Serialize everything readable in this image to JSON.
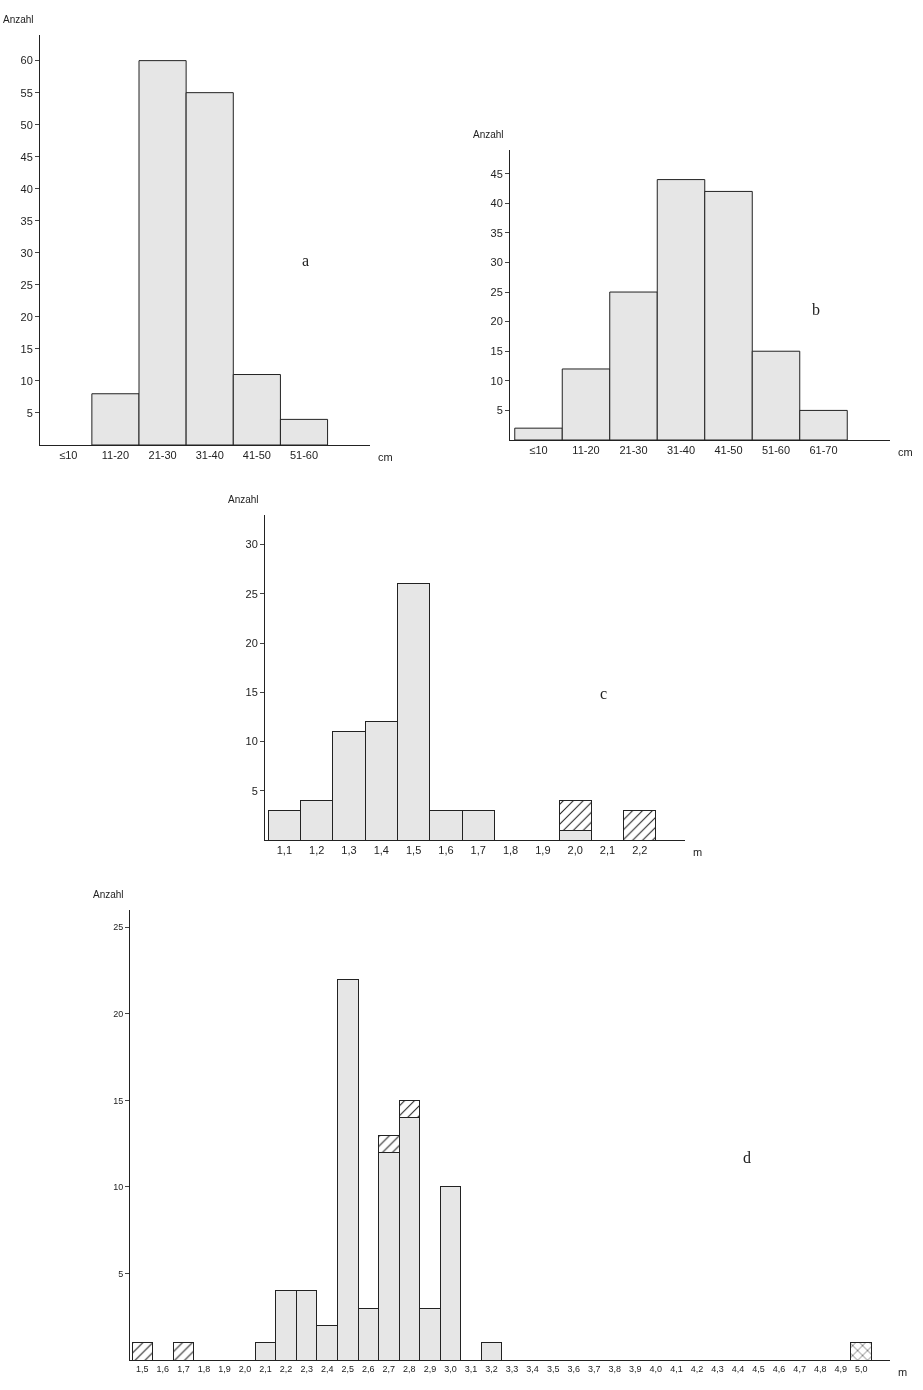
{
  "chart_data": [
    {
      "type": "bar",
      "ylabel": "Anzahl",
      "xlabel": "cm",
      "annotations": [
        "a"
      ],
      "categories": [
        "≤10",
        "11-20",
        "21-30",
        "31-40",
        "41-50",
        "51-60"
      ],
      "series": [
        {
          "color": "#e6e6e6",
          "values": [
            0,
            8,
            60,
            55,
            11,
            4
          ]
        }
      ],
      "ylim": [
        0,
        64
      ],
      "yticks": [
        5,
        10,
        15,
        20,
        25,
        30,
        35,
        40,
        45,
        50,
        55,
        60
      ]
    },
    {
      "type": "bar",
      "ylabel": "Anzahl",
      "xlabel": "cm",
      "annotations": [
        "b"
      ],
      "categories": [
        "≤10",
        "11-20",
        "21-30",
        "31-40",
        "41-50",
        "51-60",
        "61-70"
      ],
      "series": [
        {
          "color": "#e6e6e6",
          "values": [
            2,
            12,
            25,
            44,
            42,
            15,
            5
          ]
        }
      ],
      "ylim": [
        0,
        49
      ],
      "yticks": [
        5,
        10,
        15,
        20,
        25,
        30,
        35,
        40,
        45
      ]
    },
    {
      "type": "bar",
      "stacked": true,
      "ylabel": "Anzahl",
      "xlabel": "m",
      "annotations": [
        "c"
      ],
      "categories": [
        "1,1",
        "1,2",
        "1,3",
        "1,4",
        "1,5",
        "1,6",
        "1,7",
        "1,8",
        "1,9",
        "2,0",
        "2,1",
        "2,2"
      ],
      "series": [
        {
          "color": "#e6e6e6",
          "values": [
            3,
            4,
            11,
            12,
            26,
            3,
            3,
            0,
            0,
            1,
            0,
            0
          ]
        },
        {
          "color": "#222222",
          "values": [
            0,
            0,
            0,
            0,
            0,
            0,
            0,
            0,
            0,
            3,
            0,
            3
          ]
        }
      ],
      "ylim": [
        0,
        33
      ],
      "yticks": [
        5,
        10,
        15,
        20,
        25,
        30
      ]
    },
    {
      "type": "bar",
      "stacked": true,
      "ylabel": "Anzahl",
      "xlabel": "m",
      "annotations": [
        "d"
      ],
      "categories": [
        "1,5",
        "1,6",
        "1,7",
        "1,8",
        "1,9",
        "2,0",
        "2,1",
        "2,2",
        "2,3",
        "2,4",
        "2,5",
        "2,6",
        "2,7",
        "2,8",
        "2,9",
        "3,0",
        "3,1",
        "3,2",
        "3,3",
        "3,4",
        "3,5",
        "3,6",
        "3,7",
        "3,8",
        "3,9",
        "4,0",
        "4,1",
        "4,2",
        "4,3",
        "4,4",
        "4,5",
        "4,6",
        "4,7",
        "4,8",
        "4,9",
        "5,0"
      ],
      "series": [
        {
          "color": "#e6e6e6",
          "values": [
            0,
            0,
            0,
            0,
            0,
            0,
            1,
            4,
            4,
            2,
            22,
            3,
            12,
            14,
            3,
            10,
            0,
            1,
            0,
            0,
            0,
            0,
            0,
            0,
            0,
            0,
            0,
            0,
            0,
            0,
            0,
            0,
            0,
            0,
            0,
            0
          ]
        },
        {
          "color": "#222222",
          "values": [
            1,
            0,
            1,
            0,
            0,
            0,
            0,
            0,
            0,
            0,
            0,
            0,
            1,
            1,
            0,
            0,
            0,
            0,
            0,
            0,
            0,
            0,
            0,
            0,
            0,
            0,
            0,
            0,
            0,
            0,
            0,
            0,
            0,
            0,
            0,
            0
          ]
        },
        {
          "color": "#222222",
          "values": [
            0,
            0,
            0,
            0,
            0,
            0,
            0,
            0,
            0,
            0,
            0,
            0,
            0,
            0,
            0,
            0,
            0,
            0,
            0,
            0,
            0,
            0,
            0,
            0,
            0,
            0,
            0,
            0,
            0,
            0,
            0,
            0,
            0,
            0,
            0,
            1
          ]
        }
      ],
      "ylim": [
        0,
        26
      ],
      "yticks": [
        5,
        10,
        15,
        20,
        25
      ]
    }
  ]
}
